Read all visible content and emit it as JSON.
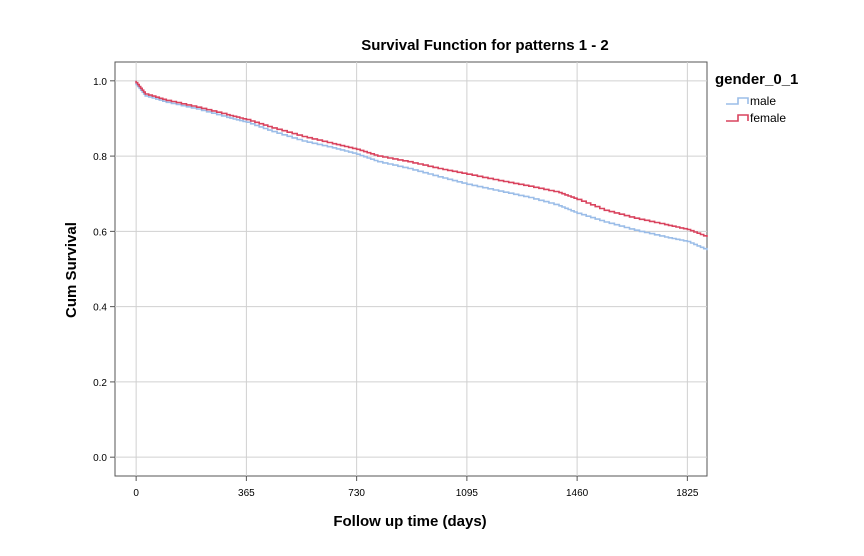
{
  "chart_data": {
    "type": "line",
    "title": "Survival Function for patterns 1 - 2",
    "xlabel": "Follow up time (days)",
    "ylabel": "Cum Survival",
    "xlim": [
      -70,
      1890
    ],
    "ylim": [
      -0.05,
      1.05
    ],
    "x_ticks": [
      0,
      365,
      730,
      1095,
      1460,
      1825
    ],
    "y_ticks": [
      0.0,
      0.2,
      0.4,
      0.6,
      0.8,
      1.0
    ],
    "grid": true,
    "legend": {
      "title": "gender_0_1",
      "placement": "top-right"
    },
    "series": [
      {
        "name": "male",
        "color": "#9bbde8",
        "x": [
          0,
          30,
          100,
          200,
          300,
          365,
          450,
          550,
          650,
          730,
          800,
          900,
          1000,
          1095,
          1200,
          1300,
          1400,
          1460,
          1550,
          1650,
          1750,
          1825,
          1890
        ],
        "y": [
          0.99,
          0.96,
          0.943,
          0.925,
          0.903,
          0.89,
          0.865,
          0.84,
          0.822,
          0.805,
          0.785,
          0.767,
          0.745,
          0.725,
          0.707,
          0.69,
          0.668,
          0.648,
          0.625,
          0.603,
          0.585,
          0.573,
          0.55
        ]
      },
      {
        "name": "female",
        "color": "#d9435e",
        "x": [
          0,
          30,
          100,
          200,
          300,
          365,
          450,
          550,
          650,
          730,
          800,
          900,
          1000,
          1095,
          1200,
          1300,
          1400,
          1460,
          1550,
          1650,
          1750,
          1825,
          1890
        ],
        "y": [
          0.995,
          0.965,
          0.948,
          0.93,
          0.91,
          0.897,
          0.875,
          0.852,
          0.833,
          0.818,
          0.8,
          0.785,
          0.767,
          0.752,
          0.735,
          0.72,
          0.703,
          0.685,
          0.656,
          0.635,
          0.618,
          0.605,
          0.585
        ]
      }
    ]
  }
}
